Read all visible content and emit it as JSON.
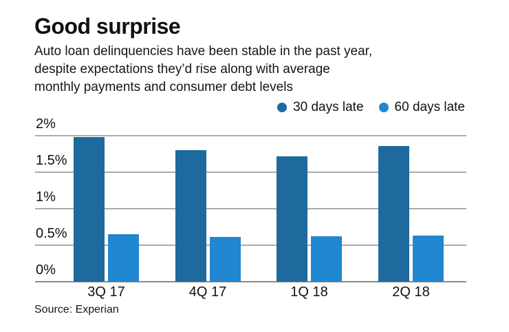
{
  "header": {
    "title": "Good surprise",
    "subtitle_lines": [
      "Auto loan delinquencies have been stable in the past year,",
      "despite expectations they’d rise along with average",
      "monthly payments and consumer debt levels"
    ]
  },
  "footer": {
    "source": "Source: Experian"
  },
  "colors": {
    "series_30_days": "#1e6a9e",
    "series_60_days": "#2287d1",
    "gridline": "#ababab",
    "axis_line": "#8a8a8a",
    "text": "#111111",
    "background": "#ffffff"
  },
  "chart_data": {
    "type": "bar",
    "title": "Good surprise",
    "subtitle": "Auto loan delinquencies have been stable in the past year, despite expectations they’d rise along with average monthly payments and consumer debt levels",
    "categories": [
      "3Q 17",
      "4Q 17",
      "1Q 18",
      "2Q 18"
    ],
    "series": [
      {
        "name": "30 days late",
        "color": "#1e6a9e",
        "values": [
          1.98,
          1.8,
          1.72,
          1.86
        ]
      },
      {
        "name": "60 days late",
        "color": "#2287d1",
        "values": [
          0.65,
          0.61,
          0.62,
          0.63
        ]
      }
    ],
    "xlabel": "",
    "ylabel": "",
    "ylim": [
      0,
      2
    ],
    "yticks": [
      {
        "value": 0,
        "label": "0%"
      },
      {
        "value": 0.5,
        "label": "0.5%"
      },
      {
        "value": 1,
        "label": "1%"
      },
      {
        "value": 1.5,
        "label": "1.5%"
      },
      {
        "value": 2,
        "label": "2%"
      }
    ],
    "grid": true,
    "legend_position": "top-right",
    "source": "Source: Experian"
  }
}
